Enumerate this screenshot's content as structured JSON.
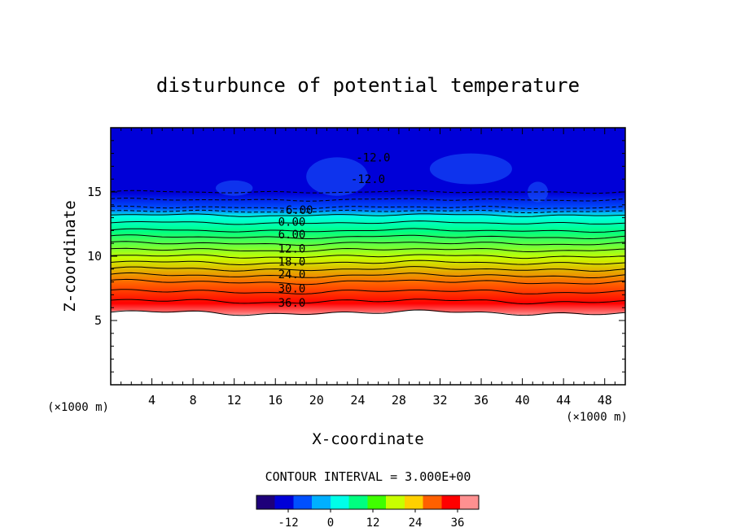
{
  "chart_data": {
    "type": "heatmap",
    "title": "disturbunce of potential temperature",
    "xlabel": "X-coordinate",
    "ylabel": "Z-coordinate",
    "x_unit": "(×1000 m)",
    "y_unit": "(×1000 m)",
    "xlim": [
      0,
      50
    ],
    "ylim": [
      0,
      20
    ],
    "x_ticks": [
      "4",
      "8",
      "12",
      "16",
      "20",
      "24",
      "28",
      "32",
      "36",
      "40",
      "44",
      "48"
    ],
    "y_ticks": [
      "5",
      "10",
      "15"
    ],
    "contour_interval_label": "CONTOUR INTERVAL = 3.000E+00",
    "contour_interval": 3.0,
    "contour_labels": [
      "-12.0",
      "-12.0",
      "-6.00",
      "0.00",
      "6.00",
      "12.0",
      "18.0",
      "24.0",
      "30.0",
      "36.0"
    ],
    "colorbar": {
      "min": -21,
      "max": 42,
      "ticks": [
        "-12",
        "0",
        "12",
        "24",
        "36"
      ],
      "colors": [
        "#1e007a",
        "#0000d8",
        "#0050ff",
        "#00b0ff",
        "#00ffe8",
        "#00ff80",
        "#40ff00",
        "#c8ff00",
        "#ffd000",
        "#ff6000",
        "#ff0000",
        "#ff9090"
      ]
    },
    "profile": {
      "z_km": [
        5.6,
        6.5,
        8.0,
        10.0,
        12.0,
        13.2,
        13.8,
        15.0,
        17.0,
        19.8
      ],
      "theta_disturbance": [
        39,
        36,
        30,
        18,
        6,
        0,
        -6,
        -12,
        -12,
        -12
      ]
    },
    "grid": false,
    "legend": "none"
  }
}
